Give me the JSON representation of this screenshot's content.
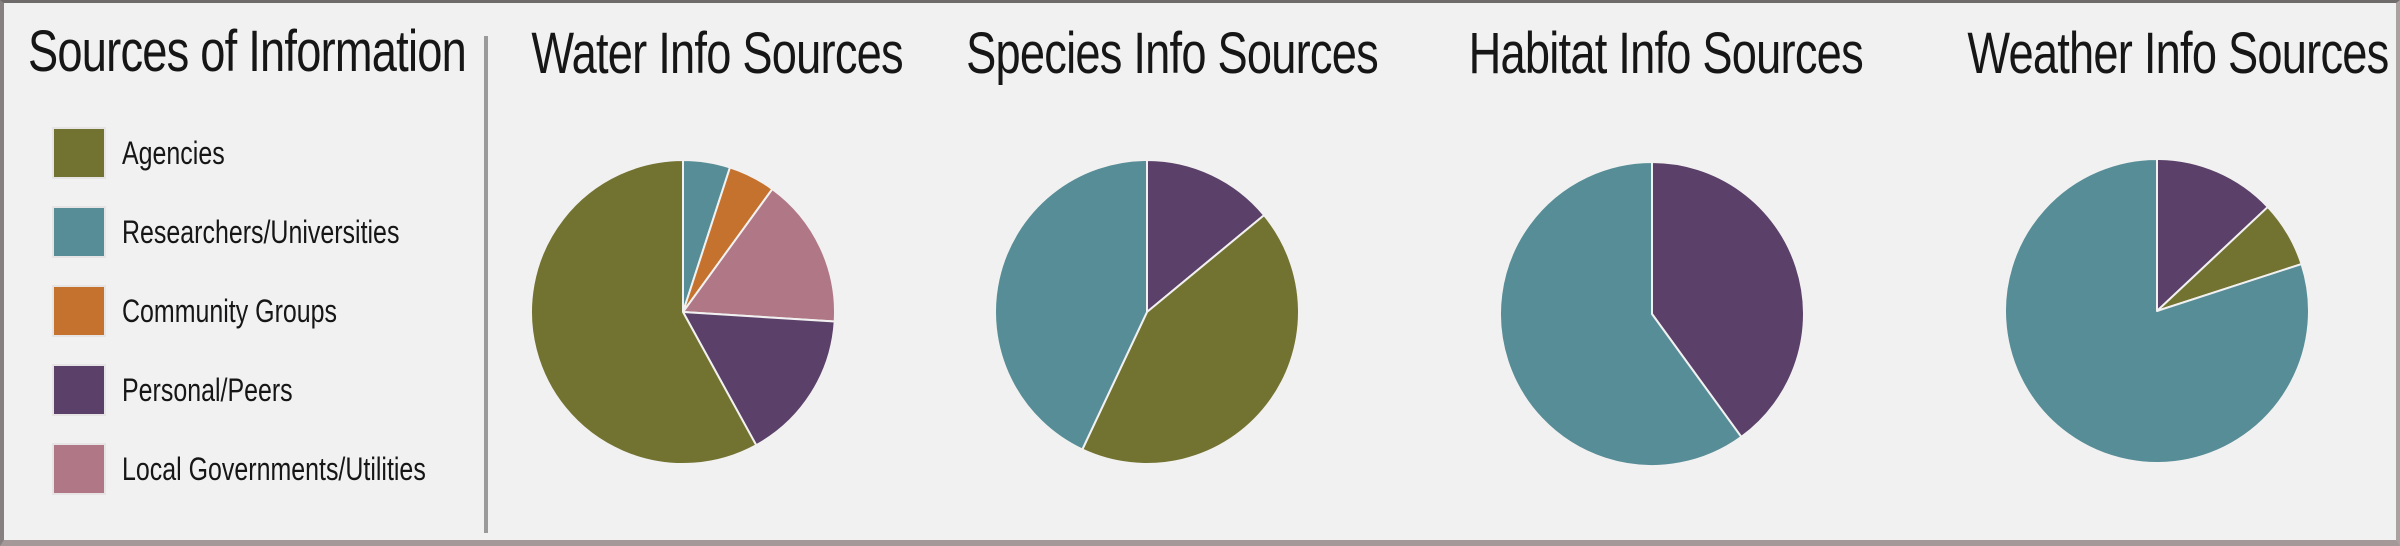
{
  "page": {
    "background": "#f2f1f1",
    "divider_color": "#9a9a9a",
    "text_color": "#161616"
  },
  "legend": {
    "title": "Sources of Information",
    "items": [
      {
        "label": "Agencies",
        "key": "agencies"
      },
      {
        "label": "Researchers/Universities",
        "key": "researchers"
      },
      {
        "label": "Community Groups",
        "key": "community"
      },
      {
        "label": "Personal/Peers",
        "key": "personal"
      },
      {
        "label": "Local Governments/Utilities",
        "key": "localgov"
      }
    ]
  },
  "palette": {
    "agencies": "#737331",
    "researchers": "#578d97",
    "community": "#c5722e",
    "personal": "#5b4169",
    "localgov": "#b07787"
  },
  "chart_data": [
    {
      "type": "pie",
      "title": "Water Info Sources",
      "unit": "percent",
      "start_angle_deg": 0,
      "direction": "clockwise",
      "legend_position": "left-panel",
      "slices": [
        {
          "label": "Researchers/Universities",
          "key": "researchers",
          "value": 5
        },
        {
          "label": "Community Groups",
          "key": "community",
          "value": 5
        },
        {
          "label": "Local Governments/Utilities",
          "key": "localgov",
          "value": 16
        },
        {
          "label": "Personal/Peers",
          "key": "personal",
          "value": 16
        },
        {
          "label": "Agencies",
          "key": "agencies",
          "value": 58
        }
      ]
    },
    {
      "type": "pie",
      "title": "Species Info Sources",
      "unit": "percent",
      "start_angle_deg": 0,
      "direction": "clockwise",
      "legend_position": "left-panel",
      "slices": [
        {
          "label": "Personal/Peers",
          "key": "personal",
          "value": 14
        },
        {
          "label": "Agencies",
          "key": "agencies",
          "value": 43
        },
        {
          "label": "Researchers/Universities",
          "key": "researchers",
          "value": 43
        }
      ]
    },
    {
      "type": "pie",
      "title": "Habitat Info Sources",
      "unit": "percent",
      "start_angle_deg": 0,
      "direction": "clockwise",
      "legend_position": "left-panel",
      "slices": [
        {
          "label": "Personal/Peers",
          "key": "personal",
          "value": 40
        },
        {
          "label": "Researchers/Universities",
          "key": "researchers",
          "value": 60
        }
      ]
    },
    {
      "type": "pie",
      "title": "Weather Info Sources",
      "unit": "percent",
      "start_angle_deg": 0,
      "direction": "clockwise",
      "legend_position": "left-panel",
      "slices": [
        {
          "label": "Personal/Peers",
          "key": "personal",
          "value": 13
        },
        {
          "label": "Agencies",
          "key": "agencies",
          "value": 7
        },
        {
          "label": "Researchers/Universities",
          "key": "researchers",
          "value": 80
        }
      ]
    }
  ]
}
